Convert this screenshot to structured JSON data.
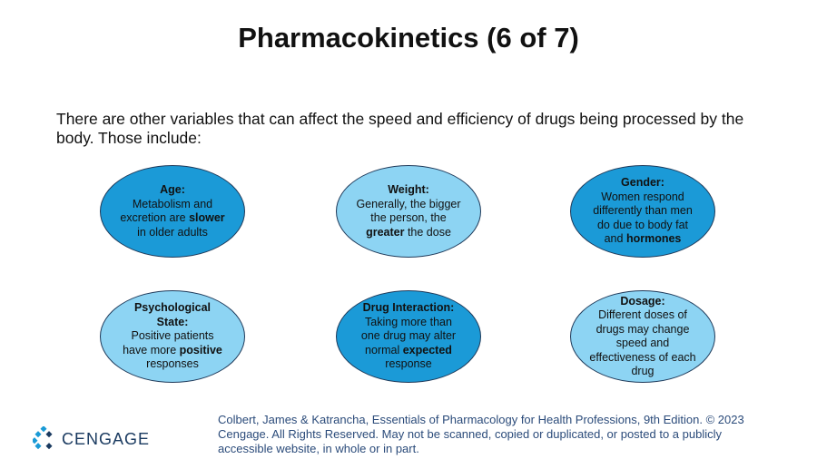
{
  "header": {
    "title": "Pharmacokinetics (6 of 7)"
  },
  "intro": "There are other variables that can affect the speed and efficiency of drugs being processed by the body.  Those include:",
  "ovals": [
    {
      "title": "Age:",
      "shade": "dark",
      "body": [
        {
          "text": "Metabolism and excretion are ",
          "bold": false
        },
        {
          "text": "slower",
          "bold": true
        },
        {
          "text": " in older adults",
          "bold": false
        }
      ]
    },
    {
      "title": "Weight:",
      "shade": "light",
      "body": [
        {
          "text": "Generally, the bigger the person, the ",
          "bold": false
        },
        {
          "text": "greater",
          "bold": true
        },
        {
          "text": " the dose",
          "bold": false
        }
      ]
    },
    {
      "title": "Gender:",
      "shade": "dark",
      "body": [
        {
          "text": "Women respond differently than men do due to body fat and ",
          "bold": false
        },
        {
          "text": "hormones",
          "bold": true
        }
      ]
    },
    {
      "title": "Psychological State:",
      "shade": "light",
      "body": [
        {
          "text": "Positive patients have more ",
          "bold": false
        },
        {
          "text": "positive",
          "bold": true
        },
        {
          "text": " responses",
          "bold": false
        }
      ]
    },
    {
      "title": "Drug Interaction:",
      "shade": "dark",
      "body": [
        {
          "text": "Taking more than one drug may alter normal ",
          "bold": false
        },
        {
          "text": "expected",
          "bold": true
        },
        {
          "text": " response",
          "bold": false
        }
      ]
    },
    {
      "title": "Dosage:",
      "shade": "light",
      "body": [
        {
          "text": "Different doses of drugs may change speed and effectiveness of each drug",
          "bold": false
        }
      ]
    }
  ],
  "footer": {
    "brand": "CENGAGE",
    "copyright": "Colbert, James & Katrancha, Essentials of Pharmacology for Health Professions, 9th Edition. © 2023 Cengage. All Rights Reserved. May not be scanned, copied or duplicated, or posted to a publicly accessible website, in whole or in part."
  }
}
